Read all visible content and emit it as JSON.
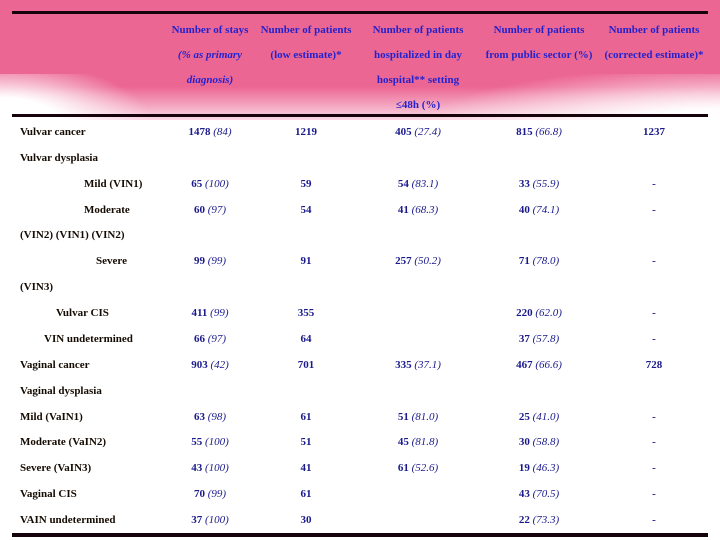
{
  "slide": {
    "band_color": "#ec6694",
    "rule_color": "#16020a",
    "header_text_color": "#2522cc",
    "value_color": "#1a1a8c",
    "label_color": "#150b02"
  },
  "table": {
    "header_columns": [
      {
        "name": "number-of-stays",
        "lines": [
          {
            "text": "Number of stays",
            "style": "b"
          },
          {
            "text": "(% as primary",
            "style": "bi"
          },
          {
            "text": "diagnosis)",
            "style": "bi"
          }
        ]
      },
      {
        "name": "patients-low-estimate",
        "lines": [
          {
            "text": "Number of patients",
            "style": "b"
          },
          {
            "text": "(low estimate)*",
            "style": "b"
          }
        ]
      },
      {
        "name": "patients-day-hospital",
        "lines": [
          {
            "text": "Number of patients",
            "style": "b"
          },
          {
            "text": "hospitalized in day",
            "style": "b"
          },
          {
            "text": "hospital** setting",
            "style": "b"
          },
          {
            "text": "≤48h (%)",
            "style": "b"
          }
        ]
      },
      {
        "name": "patients-public-sector",
        "lines": [
          {
            "text": "Number of patients",
            "style": "b"
          },
          {
            "text": "from public sector (%)",
            "style": "b"
          }
        ]
      },
      {
        "name": "patients-corrected-estimate",
        "lines": [
          {
            "text": "Number of patients",
            "style": "b"
          },
          {
            "text": "(corrected estimate)*",
            "style": "b"
          }
        ]
      }
    ],
    "rows": [
      {
        "label": "Vulvar cancer",
        "indent": 0,
        "cells": [
          {
            "v": "1478",
            "p": "(84)"
          },
          {
            "v": "1219",
            "p": ""
          },
          {
            "v": "405",
            "p": "(27.4)"
          },
          {
            "v": "815",
            "p": "(66.8)"
          },
          {
            "v": "1237",
            "p": ""
          }
        ]
      },
      {
        "label": "Vulvar dysplasia",
        "indent": 0,
        "cells": []
      },
      {
        "label": "Mild (VIN1)",
        "indent": 3,
        "cells": [
          {
            "v": "65",
            "p": "(100)"
          },
          {
            "v": "59",
            "p": ""
          },
          {
            "v": "54",
            "p": "(83.1)"
          },
          {
            "v": "33",
            "p": "(55.9)"
          },
          {
            "v": "-",
            "p": ""
          }
        ]
      },
      {
        "label": "Moderate",
        "indent": 3,
        "cells": [
          {
            "v": "60",
            "p": "(97)"
          },
          {
            "v": "54",
            "p": ""
          },
          {
            "v": "41",
            "p": "(68.3)"
          },
          {
            "v": "40",
            "p": "(74.1)"
          },
          {
            "v": "-",
            "p": ""
          }
        ]
      },
      {
        "label": "(VIN2) (VIN1) (VIN2)",
        "indent": 0,
        "cells": []
      },
      {
        "label": "Severe",
        "indent": 4,
        "cells": [
          {
            "v": "99",
            "p": "(99)"
          },
          {
            "v": "91",
            "p": ""
          },
          {
            "v": "257",
            "p": "(50.2)"
          },
          {
            "v": "71",
            "p": "(78.0)"
          },
          {
            "v": "-",
            "p": ""
          }
        ]
      },
      {
        "label": "(VIN3)",
        "indent": 0,
        "cells": []
      },
      {
        "label": "Vulvar CIS",
        "indent": 2,
        "cells": [
          {
            "v": "411",
            "p": "(99)"
          },
          {
            "v": "355",
            "p": ""
          },
          {
            "v": "",
            "p": ""
          },
          {
            "v": "220",
            "p": "(62.0)"
          },
          {
            "v": "-",
            "p": ""
          }
        ]
      },
      {
        "label": "VIN undetermined",
        "indent": 1,
        "cells": [
          {
            "v": "66",
            "p": "(97)"
          },
          {
            "v": "64",
            "p": ""
          },
          {
            "v": "",
            "p": ""
          },
          {
            "v": "37",
            "p": "(57.8)"
          },
          {
            "v": "-",
            "p": ""
          }
        ]
      },
      {
        "label": "Vaginal cancer",
        "indent": 0,
        "cells": [
          {
            "v": "903",
            "p": "(42)"
          },
          {
            "v": "701",
            "p": ""
          },
          {
            "v": "335",
            "p": "(37.1)"
          },
          {
            "v": "467",
            "p": "(66.6)"
          },
          {
            "v": "728",
            "p": ""
          }
        ]
      },
      {
        "label": "Vaginal dysplasia",
        "indent": 0,
        "cells": []
      },
      {
        "label": "Mild (VaIN1)",
        "indent": 0,
        "cells": [
          {
            "v": "63",
            "p": "(98)"
          },
          {
            "v": "61",
            "p": ""
          },
          {
            "v": "51",
            "p": "(81.0)"
          },
          {
            "v": "25",
            "p": "(41.0)"
          },
          {
            "v": "-",
            "p": ""
          }
        ]
      },
      {
        "label": "Moderate (VaIN2)",
        "indent": 0,
        "cells": [
          {
            "v": "55",
            "p": "(100)"
          },
          {
            "v": "51",
            "p": ""
          },
          {
            "v": "45",
            "p": "(81.8)"
          },
          {
            "v": "30",
            "p": "(58.8)"
          },
          {
            "v": "-",
            "p": ""
          }
        ]
      },
      {
        "label": "Severe (VaIN3)",
        "indent": 0,
        "cells": [
          {
            "v": "43",
            "p": "(100)"
          },
          {
            "v": "41",
            "p": ""
          },
          {
            "v": "61",
            "p": "(52.6)"
          },
          {
            "v": "19",
            "p": "(46.3)"
          },
          {
            "v": "-",
            "p": ""
          }
        ]
      },
      {
        "label": "Vaginal CIS",
        "indent": 0,
        "cells": [
          {
            "v": "70",
            "p": "(99)"
          },
          {
            "v": "61",
            "p": ""
          },
          {
            "v": "",
            "p": ""
          },
          {
            "v": "43",
            "p": "(70.5)"
          },
          {
            "v": "-",
            "p": ""
          }
        ]
      },
      {
        "label": "VAIN undetermined",
        "indent": 0,
        "cells": [
          {
            "v": "37",
            "p": "(100)"
          },
          {
            "v": "30",
            "p": ""
          },
          {
            "v": "",
            "p": ""
          },
          {
            "v": "22",
            "p": "(73.3)"
          },
          {
            "v": "-",
            "p": ""
          }
        ]
      }
    ]
  }
}
